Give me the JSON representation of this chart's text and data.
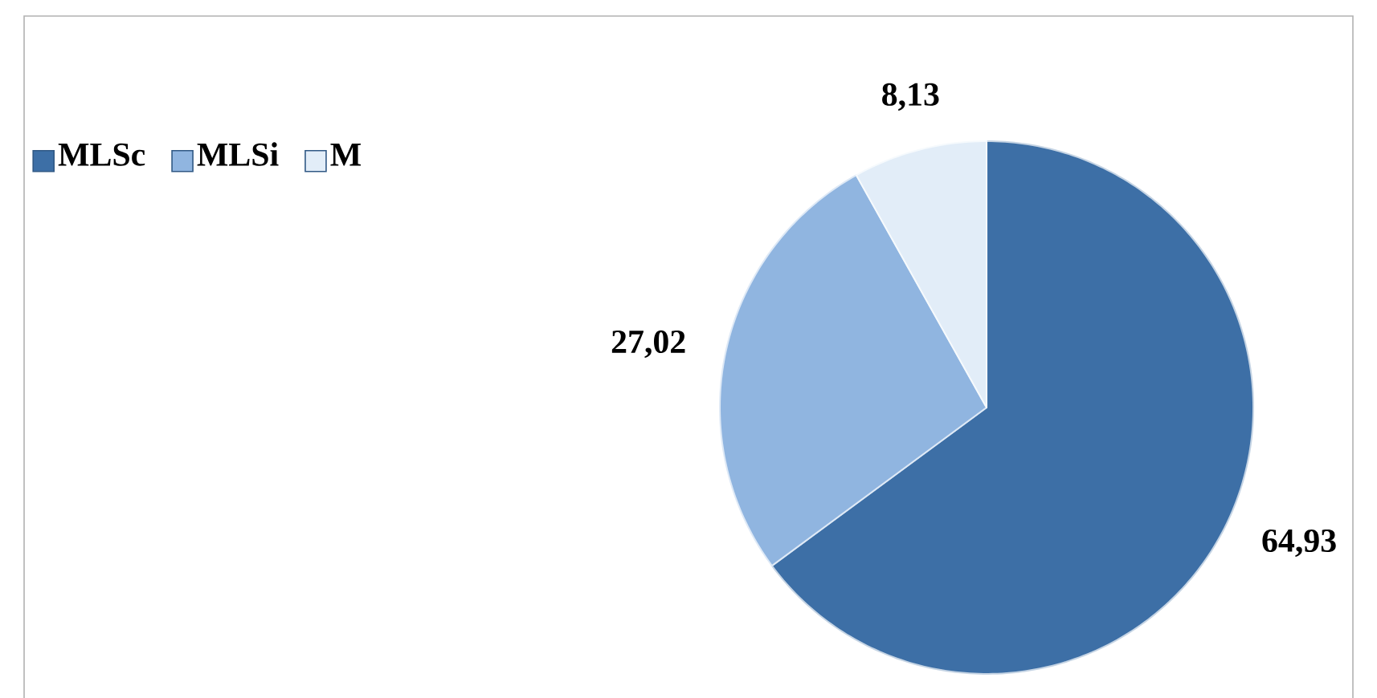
{
  "chart_data": {
    "type": "pie",
    "categories": [
      "MLSc",
      "MLSi",
      "M"
    ],
    "values": [
      64.93,
      27.02,
      8.13
    ],
    "colors": [
      "#3d6fa6",
      "#90b5e0",
      "#e2edf8"
    ],
    "value_labels": [
      "64,93",
      "27,02",
      "8,13"
    ],
    "legend": "top left"
  }
}
